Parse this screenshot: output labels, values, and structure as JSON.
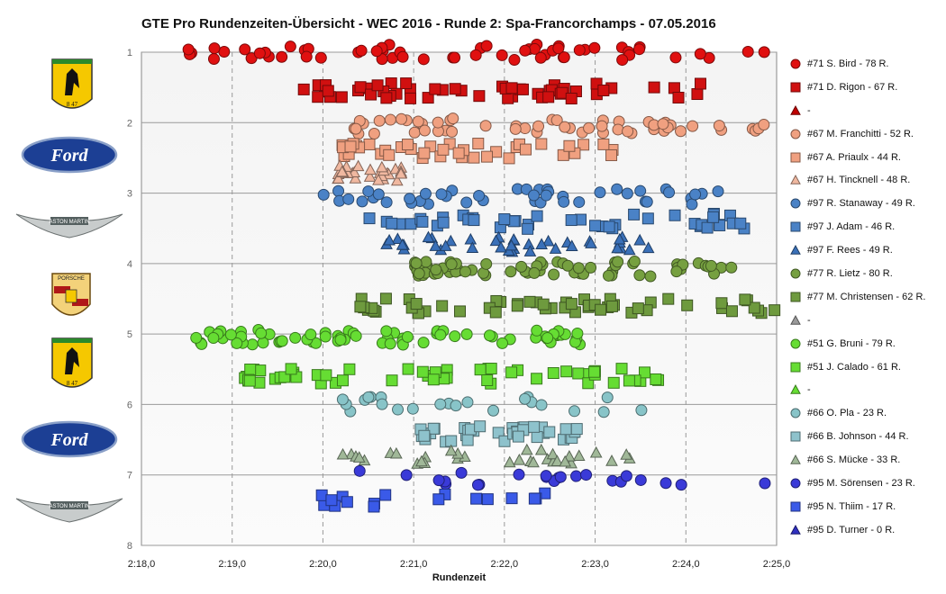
{
  "chart_data": {
    "type": "scatter",
    "title": "GTE Pro Rundenzeiten-Übersicht  - WEC 2016  - Runde 2: Spa-Francorchamps  - 07.05.2016",
    "xlabel": "Rundenzeit",
    "ylabel": "",
    "x_ticks": [
      "2:18,0",
      "2:19,0",
      "2:20,0",
      "2:21,0",
      "2:22,0",
      "2:23,0",
      "2:24,0",
      "2:25,0"
    ],
    "y_ticks": [
      "1",
      "2",
      "3",
      "4",
      "5",
      "6",
      "7",
      "8"
    ],
    "xlim_seconds": [
      138,
      145
    ],
    "ylim": [
      1,
      8
    ],
    "y_inverted": true,
    "grid": true,
    "legend_position": "right",
    "series": [
      {
        "name": "#71 S. Bird - 78 R.",
        "shape": "circle",
        "color": "#e01010",
        "row": 1.0,
        "from": 138.5,
        "to": 144.9,
        "count": 60
      },
      {
        "name": "#71 D. Rigon - 67 R.",
        "shape": "square",
        "color": "#d01010",
        "row": 1.55,
        "from": 139.7,
        "to": 144.3,
        "count": 55
      },
      {
        "name": "-",
        "shape": "triangle",
        "color": "#c00000",
        "row": null,
        "from": 0,
        "to": 0,
        "count": 0
      },
      {
        "name": "#67 M. Franchitti - 52 R.",
        "shape": "circle",
        "color": "#f0a080",
        "row": 2.05,
        "from": 140.3,
        "to": 144.9,
        "count": 55
      },
      {
        "name": "#67 A. Priaulx - 44 R.",
        "shape": "square",
        "color": "#f0a080",
        "row": 2.4,
        "from": 140.2,
        "to": 143.5,
        "count": 40
      },
      {
        "name": "#67 H. Tincknell - 48 R.",
        "shape": "triangle",
        "color": "#f0b8a0",
        "row": 2.72,
        "from": 140.1,
        "to": 140.9,
        "count": 30
      },
      {
        "name": "#97 R. Stanaway - 49 R.",
        "shape": "circle",
        "color": "#4a82c6",
        "row": 3.05,
        "from": 140.0,
        "to": 144.7,
        "count": 45
      },
      {
        "name": "#97 J. Adam - 46 R.",
        "shape": "square",
        "color": "#4a82c6",
        "row": 3.4,
        "from": 140.5,
        "to": 144.7,
        "count": 45
      },
      {
        "name": "#97 F. Rees - 49 R.",
        "shape": "triangle",
        "color": "#3a70b8",
        "row": 3.73,
        "from": 140.7,
        "to": 143.7,
        "count": 40
      },
      {
        "name": "#77 R. Lietz - 80 R.",
        "shape": "circle",
        "color": "#76a040",
        "row": 4.08,
        "from": 141.0,
        "to": 144.6,
        "count": 70
      },
      {
        "name": "#77 M. Christensen - 62 R.",
        "shape": "square",
        "color": "#6e9a3e",
        "row": 4.6,
        "from": 140.4,
        "to": 145.0,
        "count": 55
      },
      {
        "name": "-",
        "shape": "triangle",
        "color": "#9a9a9a",
        "row": null,
        "from": 0,
        "to": 0,
        "count": 0
      },
      {
        "name": "#51 G. Bruni - 79 R.",
        "shape": "circle",
        "color": "#66dd33",
        "row": 5.05,
        "from": 138.6,
        "to": 143.0,
        "count": 75
      },
      {
        "name": "#51 J. Calado - 61 R.",
        "shape": "square",
        "color": "#66dd33",
        "row": 5.6,
        "from": 139.1,
        "to": 144.0,
        "count": 55
      },
      {
        "name": "-",
        "shape": "triangle",
        "color": "#66dd33",
        "row": null,
        "from": 0,
        "to": 0,
        "count": 0
      },
      {
        "name": "#66 O. Pla - 23 R.",
        "shape": "circle",
        "color": "#88c4c8",
        "row": 6.0,
        "from": 140.2,
        "to": 143.8,
        "count": 23
      },
      {
        "name": "#66 B. Johnson - 44 R.",
        "shape": "square",
        "color": "#8ec2cc",
        "row": 6.42,
        "from": 141.0,
        "to": 142.8,
        "count": 40
      },
      {
        "name": "#66 S. Mücke - 33 R.",
        "shape": "triangle",
        "color": "#a0b898",
        "row": 6.75,
        "from": 140.2,
        "to": 143.4,
        "count": 33
      },
      {
        "name": "#95 M. Sörensen - 23 R.",
        "shape": "circle",
        "color": "#3a3ad8",
        "row": 7.05,
        "from": 140.4,
        "to": 144.9,
        "count": 23
      },
      {
        "name": "#95 N. Thiim - 17 R.",
        "shape": "square",
        "color": "#3a5ae8",
        "row": 7.37,
        "from": 139.7,
        "to": 142.5,
        "count": 17
      },
      {
        "name": "#95 D. Turner - 0 R.",
        "shape": "triangle",
        "color": "#3030c0",
        "row": null,
        "from": 0,
        "to": 0,
        "count": 0
      }
    ]
  },
  "logos": [
    {
      "name": "ferrari-logo",
      "label": "8 47"
    },
    {
      "name": "ford-logo",
      "label": "Ford"
    },
    {
      "name": "aston-martin-logo",
      "label": "ASTON MARTIN"
    },
    {
      "name": "porsche-logo",
      "label": "PORSCHE"
    },
    {
      "name": "ferrari-logo",
      "label": "8 47"
    },
    {
      "name": "ford-logo",
      "label": "Ford"
    },
    {
      "name": "aston-martin-logo",
      "label": "ASTON MARTIN"
    }
  ]
}
